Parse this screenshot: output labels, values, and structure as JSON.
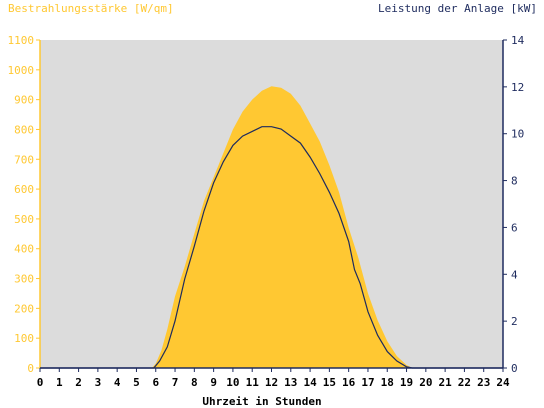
{
  "chart_data": {
    "type": "area",
    "title_left": "Bestrahlungsstärke [W/qm]",
    "title_right": "Leistung der Anlage [kW]",
    "xlabel": "Uhrzeit in Stunden",
    "xlim": [
      0,
      24
    ],
    "x_ticks": [
      "0",
      "1",
      "2",
      "3",
      "4",
      "5",
      "6",
      "7",
      "8",
      "9",
      "10",
      "11",
      "12",
      "13",
      "14",
      "15",
      "16",
      "17",
      "18",
      "19",
      "20",
      "21",
      "22",
      "23",
      "24"
    ],
    "ylim_left": [
      0,
      1100
    ],
    "y_ticks_left": [
      "0",
      "100",
      "200",
      "300",
      "400",
      "500",
      "600",
      "700",
      "800",
      "900",
      "1000",
      "1100"
    ],
    "ylim_right": [
      0,
      14
    ],
    "y_ticks_right": [
      "0",
      "2",
      "4",
      "6",
      "8",
      "10",
      "12",
      "14"
    ],
    "grid": false,
    "series": [
      {
        "name": "Bestrahlungsstärke",
        "type": "area",
        "axis": "left",
        "color": "#ffc832",
        "x": [
          0,
          5.8,
          6.0,
          6.3,
          6.6,
          7.0,
          7.5,
          8.0,
          8.5,
          9.0,
          9.5,
          10.0,
          10.5,
          11.0,
          11.5,
          12.0,
          12.5,
          13.0,
          13.5,
          14.0,
          14.5,
          15.0,
          15.5,
          16.0,
          16.5,
          17.0,
          17.5,
          18.0,
          18.5,
          19.0,
          19.3,
          24
        ],
        "y": [
          0,
          0,
          15,
          60,
          130,
          240,
          340,
          450,
          560,
          640,
          720,
          800,
          860,
          900,
          930,
          945,
          940,
          920,
          880,
          820,
          760,
          680,
          590,
          470,
          370,
          250,
          160,
          90,
          40,
          10,
          0,
          0
        ]
      },
      {
        "name": "Leistung",
        "type": "line",
        "axis": "right",
        "color": "#1e2b5e",
        "x": [
          0,
          5.9,
          6.2,
          6.6,
          7.0,
          7.5,
          8.0,
          8.5,
          9.0,
          9.5,
          10.0,
          10.5,
          11.0,
          11.5,
          12.0,
          12.5,
          13.0,
          13.5,
          14.0,
          14.5,
          15.0,
          15.5,
          16.0,
          16.3,
          16.6,
          17.0,
          17.5,
          18.0,
          18.5,
          19.0,
          19.3,
          24
        ],
        "y": [
          0,
          0,
          0.3,
          0.9,
          2.0,
          3.8,
          5.2,
          6.7,
          7.9,
          8.8,
          9.5,
          9.9,
          10.1,
          10.3,
          10.3,
          10.2,
          9.9,
          9.6,
          9.0,
          8.3,
          7.5,
          6.6,
          5.4,
          4.2,
          3.6,
          2.4,
          1.4,
          0.7,
          0.3,
          0.05,
          0,
          0
        ]
      }
    ]
  }
}
